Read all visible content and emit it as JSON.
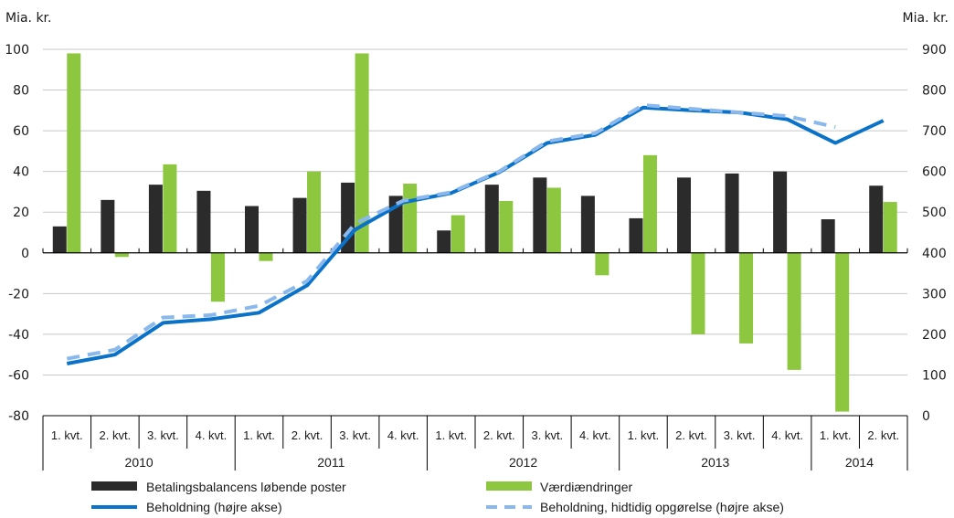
{
  "chart_data": {
    "type": "bar",
    "left_axis": {
      "label": "Mia. kr.",
      "range": [
        -80,
        100
      ],
      "ticks": [
        100,
        80,
        60,
        40,
        20,
        0,
        -20,
        -40,
        -60,
        -80
      ]
    },
    "right_axis": {
      "label": "Mia. kr.",
      "range": [
        0,
        900
      ],
      "ticks": [
        900,
        800,
        700,
        600,
        500,
        400,
        300,
        200,
        100,
        0
      ]
    },
    "grid": true,
    "categories": [
      "1. kvt.",
      "2. kvt.",
      "3. kvt.",
      "4. kvt.",
      "1. kvt.",
      "2. kvt.",
      "3. kvt.",
      "4. kvt.",
      "1. kvt.",
      "2. kvt.",
      "3. kvt.",
      "4. kvt.",
      "1. kvt.",
      "2. kvt.",
      "3. kvt.",
      "4. kvt.",
      "1. kvt.",
      "2. kvt."
    ],
    "years": [
      {
        "label": "2010",
        "count": 4
      },
      {
        "label": "2011",
        "count": 4
      },
      {
        "label": "2012",
        "count": 4
      },
      {
        "label": "2013",
        "count": 4
      },
      {
        "label": "2014",
        "count": 2
      }
    ],
    "series": [
      {
        "name": "Betalingsbalancens løbende poster",
        "type": "bar",
        "axis": "left",
        "color": "#2b2b2b",
        "values": [
          13,
          26,
          33.5,
          30.5,
          23,
          27,
          34.5,
          28,
          11,
          33.5,
          37,
          28,
          17,
          37,
          39,
          40,
          16.5,
          33
        ]
      },
      {
        "name": "Værdiændringer",
        "type": "bar",
        "axis": "left",
        "color": "#8dc63f",
        "values": [
          98,
          -2,
          43.5,
          -24,
          -4,
          40,
          98,
          34,
          18.5,
          25.5,
          32,
          -11,
          48,
          -40,
          -44.5,
          -57.5,
          -78,
          25
        ]
      },
      {
        "name": "Beholdning (højre akse)",
        "type": "line",
        "axis": "right",
        "color": "#0a72c8",
        "dash": false,
        "values": [
          128,
          150,
          228,
          237,
          253,
          320,
          457,
          524,
          547,
          598,
          670,
          690,
          757,
          750,
          745,
          728,
          670,
          725
        ]
      },
      {
        "name": "Beholdning, hidtidig opgørelse (højre akse)",
        "type": "line",
        "axis": "right",
        "color": "#8ab8ec",
        "dash": true,
        "values": [
          140,
          162,
          241,
          247,
          270,
          331,
          472,
          528,
          549,
          600,
          674,
          694,
          763,
          754,
          745,
          736,
          709,
          null
        ]
      }
    ],
    "legend_position": "bottom"
  }
}
